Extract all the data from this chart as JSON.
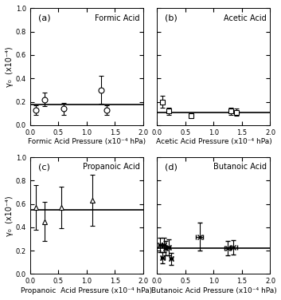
{
  "panels": [
    {
      "label": "(a)",
      "title": "Formic Acid",
      "xlabel": "Formic Acid Pressure (x10⁻⁴ hPa)",
      "marker": "o",
      "marker_size": 5,
      "x": [
        0.1,
        0.25,
        0.6,
        1.25,
        1.35
      ],
      "y": [
        0.13,
        0.22,
        0.14,
        0.3,
        0.13
      ],
      "yerr": [
        0.04,
        0.06,
        0.05,
        0.12,
        0.04
      ],
      "xerr": [
        0.0,
        0.0,
        0.0,
        0.0,
        0.0
      ],
      "hline": 0.175
    },
    {
      "label": "(b)",
      "title": "Acetic Acid",
      "xlabel": "Acetic Acid Pressure (x10⁻⁴ hPa)",
      "marker": "s",
      "marker_size": 5,
      "x": [
        0.1,
        0.2,
        0.6,
        1.3,
        1.4
      ],
      "y": [
        0.2,
        0.12,
        0.08,
        0.12,
        0.11
      ],
      "yerr": [
        0.05,
        0.03,
        0.02,
        0.03,
        0.03
      ],
      "xerr": [
        0.0,
        0.0,
        0.0,
        0.0,
        0.0
      ],
      "hline": 0.105
    },
    {
      "label": "(c)",
      "title": "Propanoic Acid",
      "xlabel": "Propanoic  Acid Pressure (x10⁻⁴ hPa)",
      "marker": "^",
      "marker_size": 5,
      "x": [
        0.1,
        0.25,
        0.55,
        1.1
      ],
      "y": [
        0.57,
        0.45,
        0.57,
        0.63
      ],
      "yerr": [
        0.19,
        0.17,
        0.18,
        0.22
      ],
      "xerr": [
        0.0,
        0.0,
        0.0,
        0.0
      ],
      "hline": 0.55
    },
    {
      "label": "(d)",
      "title": "Butanoic Acid",
      "xlabel": "Butanoic Acid Pressure (x10⁻⁴ hPa)",
      "marker": "x",
      "marker_size": 5,
      "x": [
        0.05,
        0.1,
        0.12,
        0.15,
        0.2,
        0.25,
        0.75,
        1.25,
        1.35
      ],
      "y": [
        0.25,
        0.14,
        0.25,
        0.22,
        0.23,
        0.13,
        0.32,
        0.22,
        0.23
      ],
      "yerr": [
        0.06,
        0.05,
        0.06,
        0.06,
        0.07,
        0.05,
        0.12,
        0.06,
        0.06
      ],
      "xerr": [
        0.03,
        0.03,
        0.03,
        0.03,
        0.03,
        0.03,
        0.06,
        0.06,
        0.06
      ],
      "hline": 0.22
    }
  ],
  "ylim": [
    0.0,
    1.0
  ],
  "xlim": [
    0.0,
    2.0
  ],
  "yticks": [
    0.0,
    0.2,
    0.4,
    0.6,
    0.8,
    1.0
  ],
  "xticks": [
    0.0,
    0.5,
    1.0,
    1.5,
    2.0
  ],
  "ylabel": "γ₀  (x10⁻⁴)",
  "bg_color": "#ffffff",
  "plot_bg": "#ffffff"
}
